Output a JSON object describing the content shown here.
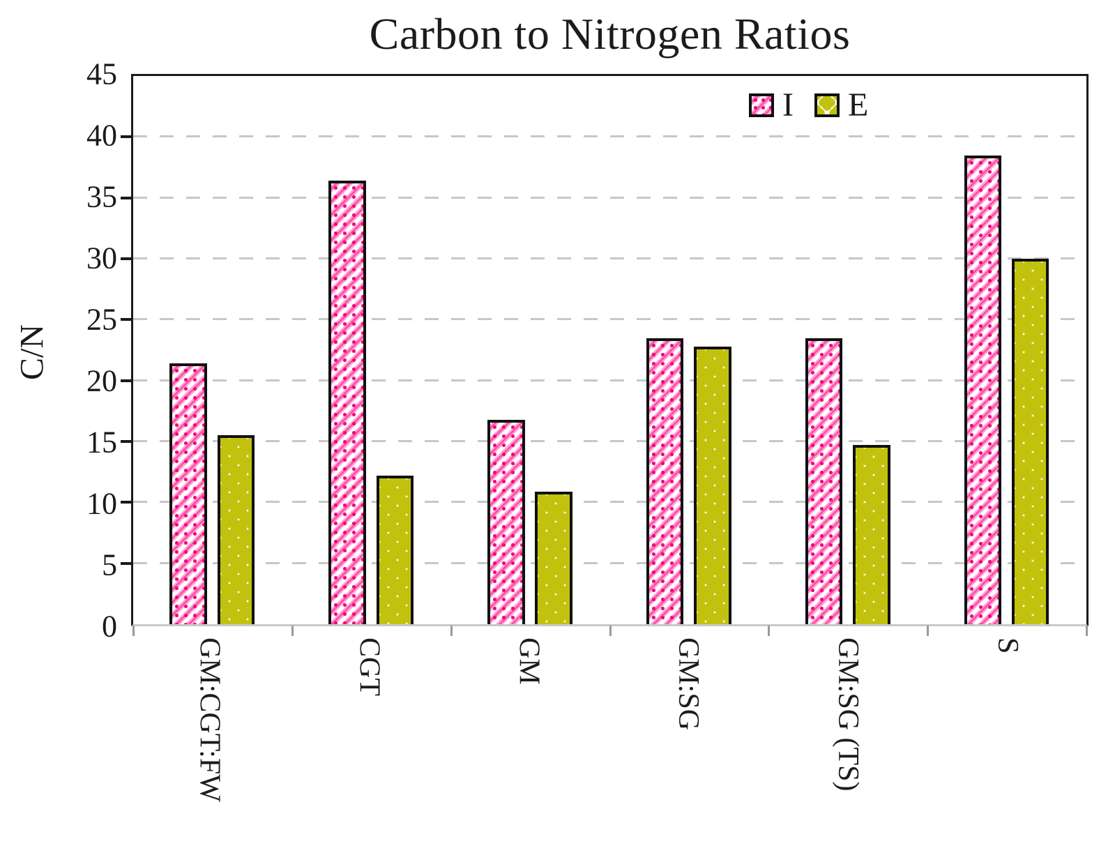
{
  "title": "Carbon to Nitrogen Ratios",
  "y_axis": {
    "label": "C/N"
  },
  "legend": {
    "items": [
      {
        "label": "I"
      },
      {
        "label": "E"
      }
    ]
  },
  "colors": {
    "series_i_hatch": "#ff2d9b",
    "series_i_hatch_light": "#ffa3d1",
    "series_e_dots": "#c2c20e",
    "gridline": "#c7c7c7",
    "axis": "#1a1a1a",
    "bar_border": "#111111"
  },
  "chart_data": {
    "type": "bar",
    "title": "Carbon to Nitrogen Ratios",
    "categories": [
      "GM:CGT:FW",
      "CGT",
      "GM",
      "GM:SG",
      "GM:SG (TS)",
      "S"
    ],
    "series": [
      {
        "name": "I",
        "pattern": "pink-diagonal-hatch",
        "values": [
          21.4,
          36.4,
          16.8,
          23.5,
          23.5,
          38.5
        ]
      },
      {
        "name": "E",
        "pattern": "olive-diamond-dots",
        "values": [
          15.5,
          12.2,
          10.9,
          22.8,
          14.7,
          30.0
        ]
      }
    ],
    "xlabel": "",
    "ylabel": "C/N",
    "ylim": [
      0,
      45
    ],
    "ytick_step": 5,
    "grid": "horizontal-dashed",
    "legend_position": "top-right-inside",
    "x_tick_label_rotation_deg": 90
  }
}
